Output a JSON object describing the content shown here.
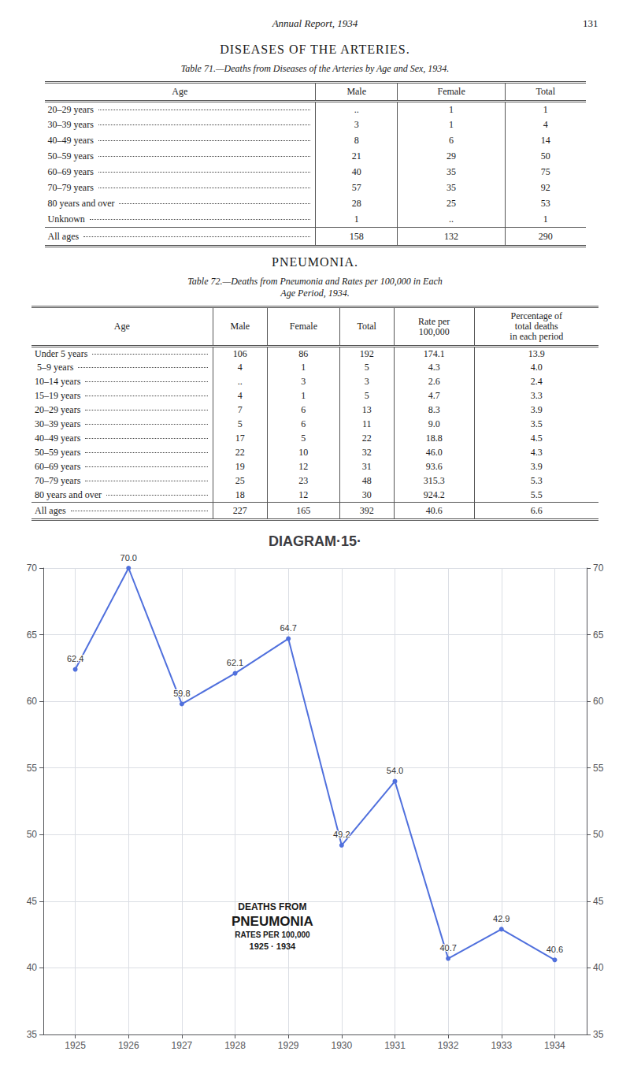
{
  "page_header": "Annual Report, 1934",
  "page_number": "131",
  "tables": [
    {
      "section_title": "DISEASES OF THE ARTERIES.",
      "caption": [
        "Table 71.—Deaths from Diseases of the Arteries by Age and Sex, 1934."
      ],
      "columns": [
        [
          "Age"
        ],
        [
          "Male"
        ],
        [
          "Female"
        ],
        [
          "Total"
        ]
      ],
      "rows": [
        [
          "20–29 years",
          "..",
          "1",
          "1"
        ],
        [
          "30–39 years",
          "3",
          "1",
          "4"
        ],
        [
          "40–49 years",
          "8",
          "6",
          "14"
        ],
        [
          "50–59 years",
          "21",
          "29",
          "50"
        ],
        [
          "60–69 years",
          "40",
          "35",
          "75"
        ],
        [
          "70–79 years",
          "57",
          "35",
          "92"
        ],
        [
          "80 years and over",
          "28",
          "25",
          "53"
        ],
        [
          "Unknown",
          "1",
          "..",
          "1"
        ]
      ],
      "footer": [
        "All ages",
        "158",
        "132",
        "290"
      ]
    },
    {
      "section_title": "PNEUMONIA.",
      "caption": [
        "Table 72.—Deaths from Pneumonia and Rates per 100,000 in Each",
        "Age Period, 1934."
      ],
      "columns": [
        [
          "Age"
        ],
        [
          "Male"
        ],
        [
          "Female"
        ],
        [
          "Total"
        ],
        [
          "Rate per",
          "100,000"
        ],
        [
          "Percentage of",
          "total deaths",
          "in each period"
        ]
      ],
      "rows": [
        [
          "Under 5 years",
          "106",
          "86",
          "192",
          "174.1",
          "13.9"
        ],
        [
          " 5–9 years",
          "4",
          "1",
          "5",
          "4.3",
          "4.0"
        ],
        [
          "10–14 years",
          "..",
          "3",
          "3",
          "2.6",
          "2.4"
        ],
        [
          "15–19 years",
          "4",
          "1",
          "5",
          "4.7",
          "3.3"
        ],
        [
          "20–29 years",
          "7",
          "6",
          "13",
          "8.3",
          "3.9"
        ],
        [
          "30–39 years",
          "5",
          "6",
          "11",
          "9.0",
          "3.5"
        ],
        [
          "40–49 years",
          "17",
          "5",
          "22",
          "18.8",
          "4.5"
        ],
        [
          "50–59 years",
          "22",
          "10",
          "32",
          "46.0",
          "4.3"
        ],
        [
          "60–69 years",
          "19",
          "12",
          "31",
          "93.6",
          "3.9"
        ],
        [
          "70–79 years",
          "25",
          "23",
          "48",
          "315.3",
          "5.3"
        ],
        [
          "80 years and over",
          "18",
          "12",
          "30",
          "924.2",
          "5.5"
        ]
      ],
      "footer": [
        "All ages",
        "227",
        "165",
        "392",
        "40.6",
        "6.6"
      ]
    }
  ],
  "chart_data": {
    "type": "line",
    "title": "DIAGRAM·15·",
    "annotations": [
      "DEATHS FROM",
      "PNEUMONIA",
      "RATES PER 100,000",
      "1925 · 1934"
    ],
    "x": [
      1925,
      1926,
      1927,
      1928,
      1929,
      1930,
      1931,
      1932,
      1933,
      1934
    ],
    "values": [
      62.4,
      70.0,
      59.8,
      62.1,
      64.7,
      49.2,
      54.0,
      40.7,
      42.9,
      40.6
    ],
    "value_labels": [
      "62.4",
      "70.0",
      "59.8",
      "62.1",
      "64.7",
      "49.2",
      "54.0",
      "40.7",
      "42.9",
      "40.6"
    ],
    "data_labels": true,
    "marker": "circle",
    "xlim": [
      1924.4,
      1934.6
    ],
    "xticks": [
      1925,
      1926,
      1927,
      1928,
      1929,
      1930,
      1931,
      1932,
      1933,
      1934
    ],
    "ylim": [
      35,
      70
    ],
    "yticks": [
      35,
      40,
      45,
      50,
      55,
      60,
      65,
      70
    ],
    "y2lim": [
      35,
      70
    ],
    "y2ticks": [
      35,
      40,
      45,
      50,
      55,
      60,
      65,
      70
    ],
    "grid": true
  }
}
